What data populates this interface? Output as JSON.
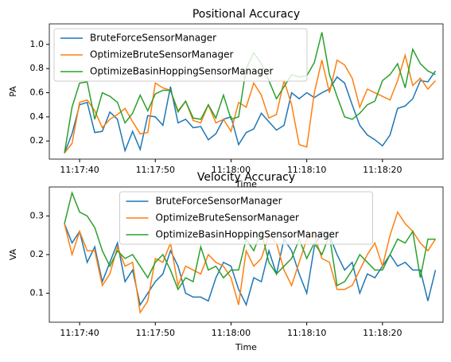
{
  "chart_data": [
    {
      "type": "line",
      "title": "Positional Accuracy",
      "x_label": "Time",
      "y_label": "PA",
      "x": [
        "11:17:38",
        "11:17:39",
        "11:17:40",
        "11:17:41",
        "11:17:42",
        "11:17:43",
        "11:17:44",
        "11:17:45",
        "11:17:46",
        "11:17:47",
        "11:17:48",
        "11:17:49",
        "11:17:50",
        "11:17:51",
        "11:17:52",
        "11:17:53",
        "11:17:54",
        "11:17:55",
        "11:17:56",
        "11:17:57",
        "11:17:58",
        "11:17:59",
        "11:18:00",
        "11:18:01",
        "11:18:02",
        "11:18:03",
        "11:18:04",
        "11:18:05",
        "11:18:06",
        "11:18:07",
        "11:18:08",
        "11:18:09",
        "11:18:10",
        "11:18:11",
        "11:18:12",
        "11:18:13",
        "11:18:14",
        "11:18:15",
        "11:18:16",
        "11:18:17",
        "11:18:18",
        "11:18:19",
        "11:18:20",
        "11:18:21",
        "11:18:22",
        "11:18:23",
        "11:18:24",
        "11:18:25",
        "11:18:26",
        "11:18:27"
      ],
      "series": [
        {
          "name": "BruteForceSensorManager",
          "color": "#1f77b4",
          "values": [
            0.1,
            0.26,
            0.5,
            0.52,
            0.27,
            0.28,
            0.44,
            0.38,
            0.12,
            0.28,
            0.13,
            0.41,
            0.4,
            0.33,
            0.65,
            0.35,
            0.38,
            0.31,
            0.32,
            0.21,
            0.26,
            0.38,
            0.4,
            0.17,
            0.27,
            0.3,
            0.43,
            0.36,
            0.29,
            0.33,
            0.6,
            0.55,
            0.6,
            0.56,
            0.6,
            0.63,
            0.73,
            0.68,
            0.5,
            0.33,
            0.25,
            0.21,
            0.16,
            0.25,
            0.47,
            0.49,
            0.55,
            0.7,
            0.69,
            0.78
          ]
        },
        {
          "name": "OptimizeBruteSensorManager",
          "color": "#ff7f0e",
          "values": [
            0.1,
            0.18,
            0.52,
            0.54,
            0.45,
            0.31,
            0.38,
            0.42,
            0.47,
            0.36,
            0.26,
            0.27,
            0.68,
            0.64,
            0.62,
            0.45,
            0.53,
            0.37,
            0.35,
            0.5,
            0.35,
            0.38,
            0.28,
            0.52,
            0.48,
            0.68,
            0.58,
            0.39,
            0.42,
            0.7,
            0.5,
            0.17,
            0.15,
            0.6,
            0.87,
            0.6,
            0.87,
            0.83,
            0.72,
            0.48,
            0.63,
            0.6,
            0.57,
            0.54,
            0.7,
            0.91,
            0.66,
            0.72,
            0.63,
            0.7
          ]
        },
        {
          "name": "OptimizeBasinHoppingSensorManager",
          "color": "#2ca02c",
          "values": [
            0.1,
            0.48,
            0.68,
            0.69,
            0.38,
            0.6,
            0.57,
            0.52,
            0.35,
            0.43,
            0.58,
            0.45,
            0.59,
            0.62,
            0.62,
            0.44,
            0.53,
            0.39,
            0.38,
            0.5,
            0.39,
            0.58,
            0.38,
            0.4,
            0.8,
            0.93,
            0.84,
            0.7,
            0.55,
            0.65,
            0.75,
            0.73,
            0.74,
            0.85,
            1.1,
            0.75,
            0.57,
            0.4,
            0.38,
            0.43,
            0.5,
            0.53,
            0.7,
            0.75,
            0.84,
            0.64,
            0.96,
            0.84,
            0.78,
            0.75
          ]
        }
      ],
      "xlim": [
        "11:17:36",
        "11:18:28"
      ],
      "xticks": [
        "11:17:40",
        "11:17:50",
        "11:18:00",
        "11:18:10",
        "11:18:20"
      ],
      "ylim": [
        0.05,
        1.17
      ],
      "yticks": [
        0.2,
        0.4,
        0.6,
        0.8,
        {
          "value": 1,
          "label": "1.0"
        }
      ],
      "legend": "upper left"
    },
    {
      "type": "line",
      "title": "Velocity Accuracy",
      "x_label": "Time",
      "y_label": "VA",
      "x": [
        "11:17:38",
        "11:17:39",
        "11:17:40",
        "11:17:41",
        "11:17:42",
        "11:17:43",
        "11:17:44",
        "11:17:45",
        "11:17:46",
        "11:17:47",
        "11:17:48",
        "11:17:49",
        "11:17:50",
        "11:17:51",
        "11:17:52",
        "11:17:53",
        "11:17:54",
        "11:17:55",
        "11:17:56",
        "11:17:57",
        "11:17:58",
        "11:17:59",
        "11:18:00",
        "11:18:01",
        "11:18:02",
        "11:18:03",
        "11:18:04",
        "11:18:05",
        "11:18:06",
        "11:18:07",
        "11:18:08",
        "11:18:09",
        "11:18:10",
        "11:18:11",
        "11:18:12",
        "11:18:13",
        "11:18:14",
        "11:18:15",
        "11:18:16",
        "11:18:17",
        "11:18:18",
        "11:18:19",
        "11:18:20",
        "11:18:21",
        "11:18:22",
        "11:18:23",
        "11:18:24",
        "11:18:25",
        "11:18:26",
        "11:18:27"
      ],
      "series": [
        {
          "name": "BruteForceSensorManager",
          "color": "#1f77b4",
          "values": [
            0.28,
            0.23,
            0.26,
            0.18,
            0.22,
            0.13,
            0.18,
            0.23,
            0.13,
            0.16,
            0.07,
            0.1,
            0.13,
            0.15,
            0.21,
            0.17,
            0.1,
            0.09,
            0.09,
            0.08,
            0.14,
            0.18,
            0.17,
            0.11,
            0.07,
            0.14,
            0.13,
            0.21,
            0.15,
            0.24,
            0.21,
            0.15,
            0.1,
            0.22,
            0.26,
            0.25,
            0.2,
            0.16,
            0.18,
            0.1,
            0.15,
            0.14,
            0.17,
            0.2,
            0.17,
            0.18,
            0.16,
            0.16,
            0.08,
            0.16
          ]
        },
        {
          "name": "OptimizeBruteSensorManager",
          "color": "#ff7f0e",
          "values": [
            0.28,
            0.2,
            0.26,
            0.21,
            0.21,
            0.12,
            0.15,
            0.22,
            0.17,
            0.18,
            0.05,
            0.08,
            0.19,
            0.18,
            0.23,
            0.12,
            0.17,
            0.16,
            0.15,
            0.2,
            0.18,
            0.17,
            0.14,
            0.07,
            0.21,
            0.17,
            0.19,
            0.25,
            0.23,
            0.16,
            0.12,
            0.18,
            0.24,
            0.25,
            0.19,
            0.18,
            0.11,
            0.11,
            0.12,
            0.16,
            0.2,
            0.23,
            0.17,
            0.25,
            0.31,
            0.28,
            0.26,
            0.23,
            0.21,
            0.24
          ]
        },
        {
          "name": "OptimizeBasinHoppingSensorManager",
          "color": "#2ca02c",
          "values": [
            0.28,
            0.36,
            0.31,
            0.3,
            0.27,
            0.21,
            0.17,
            0.21,
            0.19,
            0.2,
            0.17,
            0.14,
            0.18,
            0.2,
            0.16,
            0.11,
            0.14,
            0.13,
            0.22,
            0.16,
            0.17,
            0.14,
            0.16,
            0.16,
            0.24,
            0.21,
            0.26,
            0.18,
            0.15,
            0.17,
            0.19,
            0.24,
            0.19,
            0.23,
            0.2,
            0.25,
            0.12,
            0.13,
            0.16,
            0.2,
            0.18,
            0.16,
            0.16,
            0.2,
            0.24,
            0.23,
            0.26,
            0.14,
            0.24,
            0.24
          ]
        }
      ],
      "xlim": [
        "11:17:36",
        "11:18:28"
      ],
      "xticks": [
        "11:17:40",
        "11:17:50",
        "11:18:00",
        "11:18:10",
        "11:18:20"
      ],
      "ylim": [
        0.025,
        0.375
      ],
      "yticks": [
        0.1,
        0.2,
        0.3
      ],
      "legend": "upper center"
    }
  ]
}
